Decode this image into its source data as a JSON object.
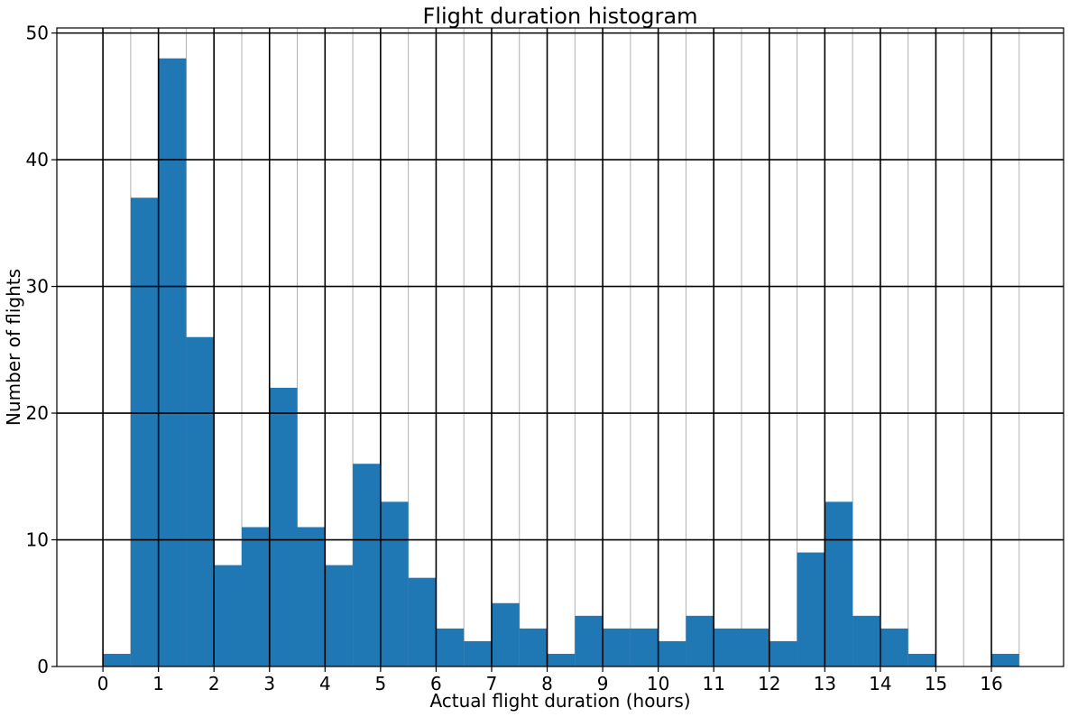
{
  "chart_data": {
    "type": "bar",
    "title": "Flight duration histogram",
    "xlabel": "Actual flight duration (hours)",
    "ylabel": "Number of flights",
    "bin_width": 0.5,
    "bins_start": [
      0,
      0.5,
      1,
      1.5,
      2,
      2.5,
      3,
      3.5,
      4,
      4.5,
      5,
      5.5,
      6,
      6.5,
      7,
      7.5,
      8,
      8.5,
      9,
      9.5,
      10,
      10.5,
      11,
      11.5,
      12,
      12.5,
      13,
      13.5,
      14,
      14.5,
      15,
      15.5,
      16
    ],
    "values": [
      1,
      37,
      48,
      26,
      8,
      11,
      22,
      11,
      8,
      16,
      13,
      7,
      3,
      2,
      5,
      3,
      1,
      4,
      3,
      3,
      2,
      4,
      3,
      3,
      2,
      9,
      13,
      4,
      3,
      1,
      0,
      0,
      1
    ],
    "xticks": [
      "0",
      "1",
      "2",
      "3",
      "4",
      "5",
      "6",
      "7",
      "8",
      "9",
      "10",
      "11",
      "12",
      "13",
      "14",
      "15",
      "16"
    ],
    "yticks": [
      "0",
      "10",
      "20",
      "30",
      "40",
      "50"
    ],
    "xlim": [
      -0.83,
      17.3
    ],
    "ylim": [
      0,
      50.4
    ],
    "grid": true,
    "bar_color": "#1f77b4",
    "major_grid_color": "#000000",
    "minor_grid_color": "#b0b0b0"
  }
}
